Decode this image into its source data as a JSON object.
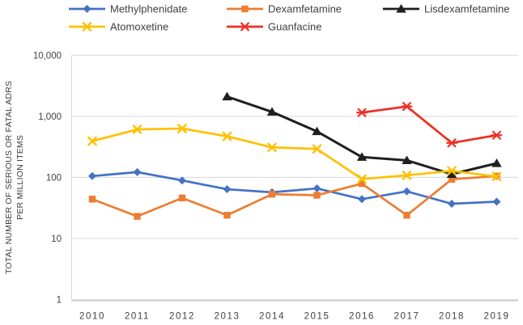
{
  "chart_data": {
    "type": "line",
    "x_labels": [
      "2010",
      "2011",
      "2012",
      "2013",
      "2014",
      "2015",
      "2016",
      "2017",
      "2018",
      "2019"
    ],
    "y_axis": {
      "scale": "log",
      "min": 1,
      "max": 10000,
      "tick_values": [
        1,
        10,
        100,
        1000,
        10000
      ],
      "tick_labels": [
        "1",
        "10",
        "100",
        "1,000",
        "10,000"
      ],
      "title_line1": "TOTAL  NUMBER OF SERIOUS OR FATAL ADRS",
      "title_line2": "PER MILLION ITEMS"
    },
    "grid": true,
    "legend_position": "top",
    "colors": {
      "gridline": "#D9D9D9",
      "axis_line": "#BFBFBF",
      "text": "#404040"
    },
    "series": [
      {
        "name": "Methylphenidate",
        "color": "#4472C4",
        "marker": "diamond",
        "values": [
          105,
          122,
          89,
          64,
          57,
          66,
          44,
          59,
          37,
          40
        ]
      },
      {
        "name": "Dexamfetamine",
        "color": "#ED7D31",
        "marker": "square",
        "values": [
          44,
          23,
          46,
          24,
          53,
          51,
          79,
          24,
          93,
          105
        ]
      },
      {
        "name": "Lisdexamfetamine",
        "color": "#1F1F1F",
        "marker": "triangle-up",
        "values": [
          null,
          null,
          null,
          2100,
          1180,
          565,
          215,
          190,
          113,
          170
        ]
      },
      {
        "name": "Atomoxetine",
        "color": "#FFC000",
        "marker": "x-cross",
        "values": [
          392,
          610,
          630,
          470,
          310,
          292,
          94,
          108,
          128,
          103
        ]
      },
      {
        "name": "Guanfacine",
        "color": "#EE2E24",
        "marker": "asterisk",
        "values": [
          null,
          null,
          null,
          null,
          null,
          null,
          1150,
          1450,
          366,
          490
        ]
      }
    ]
  }
}
